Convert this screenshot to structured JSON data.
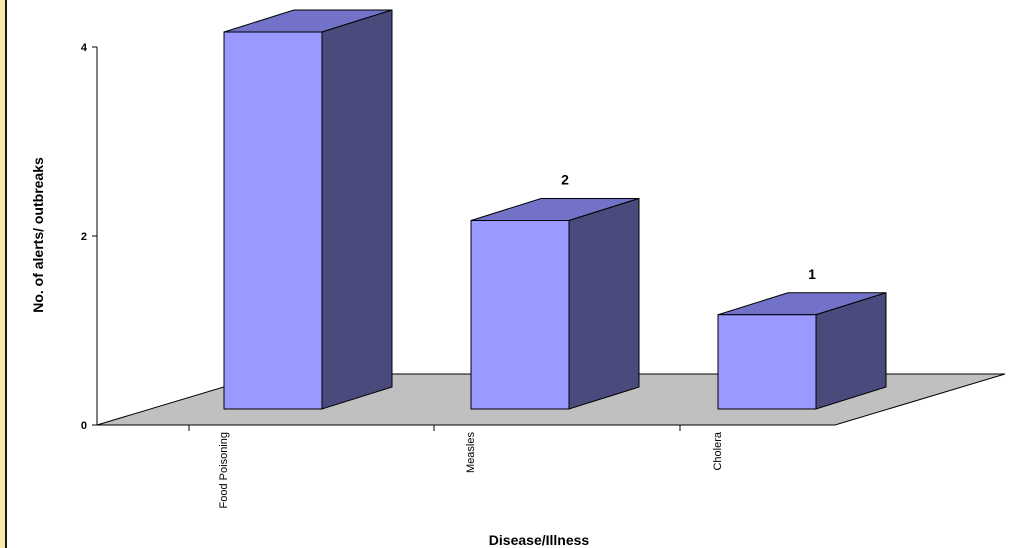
{
  "chart_data": {
    "type": "bar",
    "categories": [
      "Food Poisoning",
      "Measles",
      "Cholera"
    ],
    "values": [
      4,
      2,
      1
    ],
    "data_labels": [
      "",
      "2",
      "1"
    ],
    "yticks": [
      0,
      2,
      4
    ],
    "ylim": [
      0,
      4
    ],
    "ylabel": "No. of alerts/ outbreaks",
    "xlabel": "Disease/Illness",
    "style": "3d-column",
    "colors": {
      "bar_front": "#9999ff",
      "bar_side": "#4a4a7c",
      "bar_top": "#7272c8",
      "floor": "#c0c0c0",
      "left_edge": "#fde9a6"
    }
  }
}
